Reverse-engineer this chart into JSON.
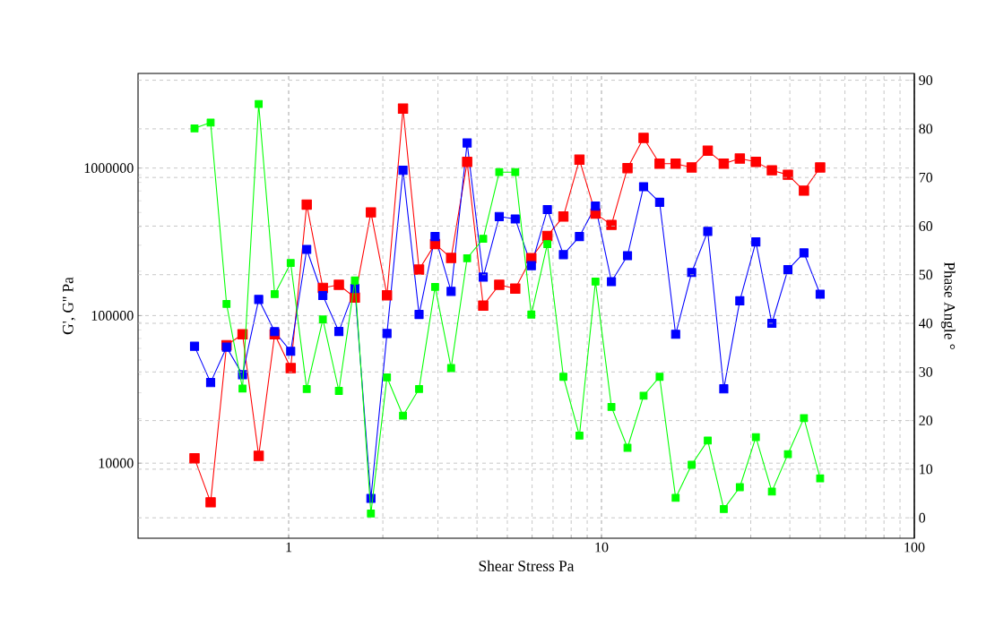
{
  "chart_data": {
    "type": "line",
    "xlabel": "Shear Stress Pa",
    "ylabel": "G', G'' Pa",
    "y2label": "Phase Angle °",
    "x": [
      0.5,
      0.563,
      0.633,
      0.712,
      0.802,
      0.902,
      1.015,
      1.142,
      1.286,
      1.447,
      1.628,
      1.832,
      2.062,
      2.32,
      2.611,
      2.938,
      3.306,
      3.72,
      4.187,
      4.711,
      5.301,
      5.966,
      6.713,
      7.555,
      8.501,
      9.566,
      10.76,
      12.11,
      13.63,
      15.34,
      17.26,
      19.42,
      21.86,
      24.6,
      27.68,
      31.15,
      35.05,
      39.44,
      44.38,
      50
    ],
    "series": [
      {
        "color": "#ff0000",
        "values": [
          10800,
          5430,
          63000,
          74700,
          11200,
          74700,
          44100,
          566000,
          154000,
          161700,
          132400,
          501000,
          137400,
          2530000,
          205000,
          306000,
          245700,
          1100000,
          117000,
          161700,
          152500,
          245000,
          347000,
          469000,
          1140000,
          492000,
          412000,
          1000000,
          1600000,
          1070000,
          1070000,
          1010000,
          1310000,
          1070000,
          1160000,
          1100000,
          966000,
          901000,
          703000,
          1010000
        ]
      },
      {
        "color": "#0000ff",
        "values": [
          62000,
          35200,
          61100,
          39800,
          128800,
          77900,
          57300,
          281000,
          136800,
          78100,
          152800,
          5770,
          75700,
          966000,
          101900,
          343600,
          146000,
          1480000,
          182400,
          469000,
          452000,
          218000,
          523000,
          259000,
          343600,
          552000,
          170000,
          255000,
          748000,
          586000,
          74700,
          196000,
          372000,
          31900,
          126000,
          316000,
          88700,
          205000,
          266000,
          139700
        ]
      },
      {
        "color": "#00ff00",
        "axis": "y2",
        "values": [
          80.1,
          81.3,
          44.0,
          26.6,
          85.1,
          46.0,
          52.4,
          26.5,
          40.8,
          26.1,
          48.8,
          0.9,
          28.9,
          21.0,
          26.5,
          47.5,
          30.8,
          53.4,
          57.4,
          71.1,
          71.1,
          41.8,
          56.3,
          29.0,
          16.9,
          48.6,
          22.8,
          14.4,
          25.1,
          29.0,
          4.1,
          10.9,
          15.9,
          1.8,
          6.3,
          16.6,
          5.4,
          13.1,
          20.5,
          8.1
        ]
      }
    ],
    "log": "xy",
    "xlim": [
      0.33,
      100
    ],
    "xticks": [
      1,
      10,
      100
    ],
    "ylim": [
      3100,
      4380000
    ],
    "yticks": [
      10000,
      100000,
      1000000
    ],
    "y2lim": [
      -4.2,
      91.4
    ],
    "y2ticks": [
      0,
      10,
      20,
      30,
      40,
      50,
      60,
      70,
      80,
      90
    ],
    "grid": true,
    "marker": "square",
    "line_style": "solid"
  }
}
